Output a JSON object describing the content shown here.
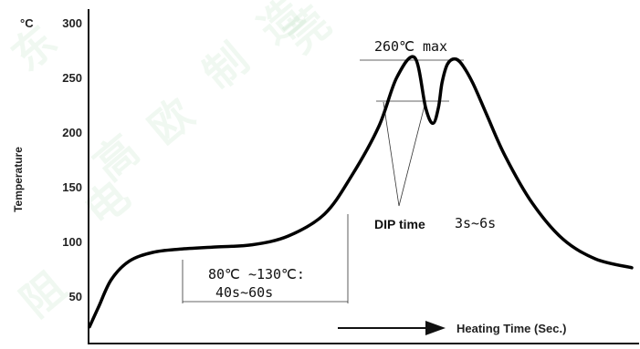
{
  "chart_data": {
    "type": "line",
    "title": "",
    "y_unit": "°C",
    "ylabel": "Temperature",
    "xlabel": "Heating Time (Sec.)",
    "ylim": [
      0,
      300
    ],
    "y_ticks": [
      50,
      100,
      150,
      200,
      250,
      300
    ],
    "x_ticks": [],
    "grid": false,
    "series": [
      {
        "name": "",
        "x": [
          0,
          5,
          12,
          22,
          35,
          50,
          70,
          90,
          110,
          130,
          145,
          160,
          170,
          180,
          186,
          190,
          193,
          195,
          198,
          202,
          206,
          212,
          220,
          230,
          245,
          262,
          280,
          300
        ],
        "y": [
          22,
          40,
          65,
          82,
          90,
          93,
          95,
          97,
          105,
          125,
          160,
          205,
          250,
          268,
          222,
          208,
          222,
          245,
          262,
          267,
          262,
          245,
          215,
          178,
          135,
          102,
          84,
          76
        ]
      }
    ],
    "annotations": {
      "peak": "260℃ max",
      "dip_time": "DIP time",
      "dip_duration": "3s~6s",
      "preheat_temp": "80℃ ~130℃:",
      "preheat_time": "40s~60s"
    },
    "watermark": [
      "东",
      "莞",
      "制",
      "造",
      "电",
      "阻",
      "高",
      "欧"
    ]
  }
}
